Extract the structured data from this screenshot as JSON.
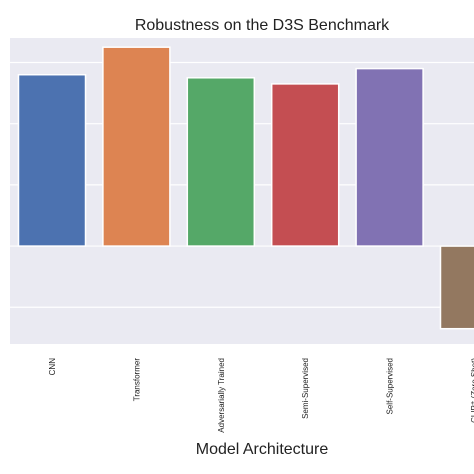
{
  "chart_data": {
    "type": "bar",
    "title": "Robustness on the D3S Benchmark",
    "xlabel": "Model Architecture",
    "ylabel": "",
    "categories": [
      "CNN",
      "Transformer",
      "Adversarially Trained",
      "Semi-Supervised",
      "Self-Supervised",
      "CLIP‡ (Zero Shot)"
    ],
    "values": [
      2.8,
      3.25,
      2.75,
      2.65,
      2.9,
      -1.35
    ],
    "colors": [
      "#4c72b0",
      "#dd8452",
      "#55a868",
      "#c44e52",
      "#8172b3",
      "#937860"
    ],
    "ylim": [
      -1.6,
      3.4
    ],
    "yticks": [
      -1,
      0,
      1,
      2,
      3
    ],
    "grid": true,
    "background": "#eaeaf2",
    "legend": "none"
  }
}
